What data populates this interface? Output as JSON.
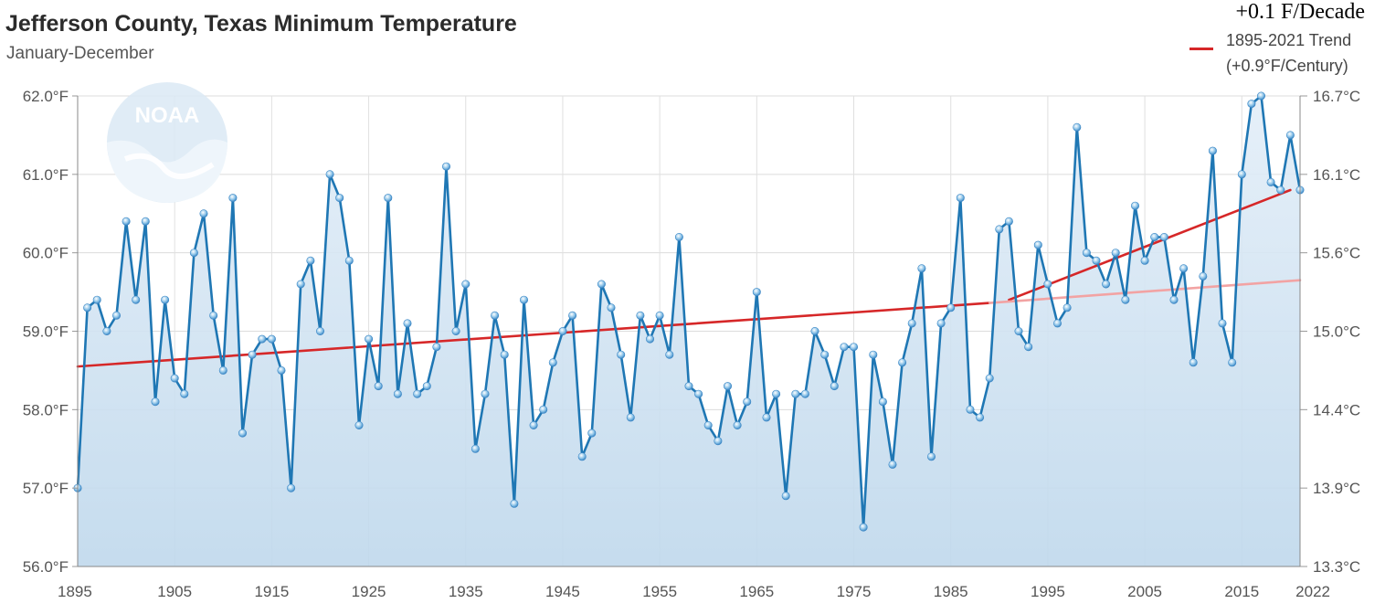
{
  "chart_data": {
    "type": "line",
    "title": "Jefferson County, Texas Minimum Temperature",
    "subtitle": "January-December",
    "annotation": "+0.1 F/Decade",
    "logo_text": "NOAA",
    "legend": {
      "placement": "top-right",
      "entries": [
        {
          "name": "1895-2021 Trend",
          "detail": "(+0.9°F/Century)",
          "color": "#d62728"
        }
      ]
    },
    "x_range": [
      1895,
      2021
    ],
    "ylim_f": [
      56.0,
      62.0
    ],
    "ylim_c": [
      13.3,
      16.7
    ],
    "x_ticks": [
      "1895",
      "1905",
      "1915",
      "1925",
      "1935",
      "1945",
      "1955",
      "1965",
      "1975",
      "1985",
      "1995",
      "2005",
      "2015",
      "2022"
    ],
    "y_ticks_f": [
      "56.0°F",
      "57.0°F",
      "58.0°F",
      "59.0°F",
      "60.0°F",
      "61.0°F",
      "62.0°F"
    ],
    "y_ticks_c": [
      "13.3°C",
      "13.9°C",
      "14.4°C",
      "15.0°C",
      "15.6°C",
      "16.1°C",
      "16.7°C"
    ],
    "grid": true,
    "series": [
      {
        "color": "#1f77b4",
        "x": [
          1895,
          1896,
          1897,
          1898,
          1899,
          1900,
          1901,
          1902,
          1903,
          1904,
          1905,
          1906,
          1907,
          1908,
          1909,
          1910,
          1911,
          1912,
          1913,
          1914,
          1915,
          1916,
          1917,
          1918,
          1919,
          1920,
          1921,
          1922,
          1923,
          1924,
          1925,
          1926,
          1927,
          1928,
          1929,
          1930,
          1931,
          1932,
          1933,
          1934,
          1935,
          1936,
          1937,
          1938,
          1939,
          1940,
          1941,
          1942,
          1943,
          1944,
          1945,
          1946,
          1947,
          1948,
          1949,
          1950,
          1951,
          1952,
          1953,
          1954,
          1955,
          1956,
          1957,
          1958,
          1959,
          1960,
          1961,
          1962,
          1963,
          1964,
          1965,
          1966,
          1967,
          1968,
          1969,
          1970,
          1971,
          1972,
          1973,
          1974,
          1975,
          1976,
          1977,
          1978,
          1979,
          1980,
          1981,
          1982,
          1983,
          1984,
          1985,
          1986,
          1987,
          1988,
          1989,
          1990,
          1991,
          1992,
          1993,
          1994,
          1995,
          1996,
          1997,
          1998,
          1999,
          2000,
          2001,
          2002,
          2003,
          2004,
          2005,
          2006,
          2007,
          2008,
          2009,
          2010,
          2011,
          2012,
          2013,
          2014,
          2015,
          2016,
          2017,
          2018,
          2019,
          2020,
          2021
        ],
        "values": [
          57.0,
          59.3,
          59.4,
          59.0,
          59.2,
          60.4,
          59.4,
          60.4,
          58.1,
          59.4,
          58.4,
          58.2,
          60.0,
          60.5,
          59.2,
          58.5,
          60.7,
          57.7,
          58.7,
          58.9,
          58.9,
          58.5,
          57.0,
          59.6,
          59.9,
          59.0,
          61.0,
          60.7,
          59.9,
          57.8,
          58.9,
          58.3,
          60.7,
          58.2,
          59.1,
          58.2,
          58.3,
          58.8,
          61.1,
          59.0,
          59.6,
          57.5,
          58.2,
          59.2,
          58.7,
          56.8,
          59.4,
          57.8,
          58.0,
          58.6,
          59.0,
          59.2,
          57.4,
          57.7,
          59.6,
          59.3,
          58.7,
          57.9,
          59.2,
          58.9,
          59.2,
          58.7,
          60.2,
          58.3,
          58.2,
          57.8,
          57.6,
          58.3,
          57.8,
          58.1,
          59.5,
          57.9,
          58.2,
          56.9,
          58.2,
          58.2,
          59.0,
          58.7,
          58.3,
          58.8,
          58.8,
          56.5,
          58.7,
          58.1,
          57.3,
          58.6,
          59.1,
          59.8,
          57.4,
          59.1,
          59.3,
          60.7,
          58.0,
          57.9,
          58.4,
          60.3,
          60.4,
          59.0,
          58.8,
          60.1,
          59.6,
          59.1,
          59.3,
          61.6,
          60.0,
          59.9,
          59.6,
          60.0,
          59.4,
          60.6,
          59.9,
          60.2,
          60.2,
          59.4,
          59.8,
          58.6,
          59.7,
          61.3,
          59.1,
          58.6,
          61.0,
          61.9,
          62.0,
          60.9,
          60.8,
          61.5,
          60.8
        ]
      }
    ],
    "trend_lines": [
      {
        "name": "1895-2021 Trend",
        "color": "#d62728",
        "x": [
          1895,
          1989
        ],
        "y": [
          58.55,
          59.36
        ]
      },
      {
        "name": "Recent trend",
        "color": "#d62728",
        "x": [
          1991,
          2020
        ],
        "y": [
          59.4,
          60.8
        ]
      },
      {
        "name": "Long-term trend extension",
        "color": "#f2a3a3",
        "x": [
          1989,
          2021
        ],
        "y": [
          59.36,
          59.65
        ]
      }
    ]
  }
}
